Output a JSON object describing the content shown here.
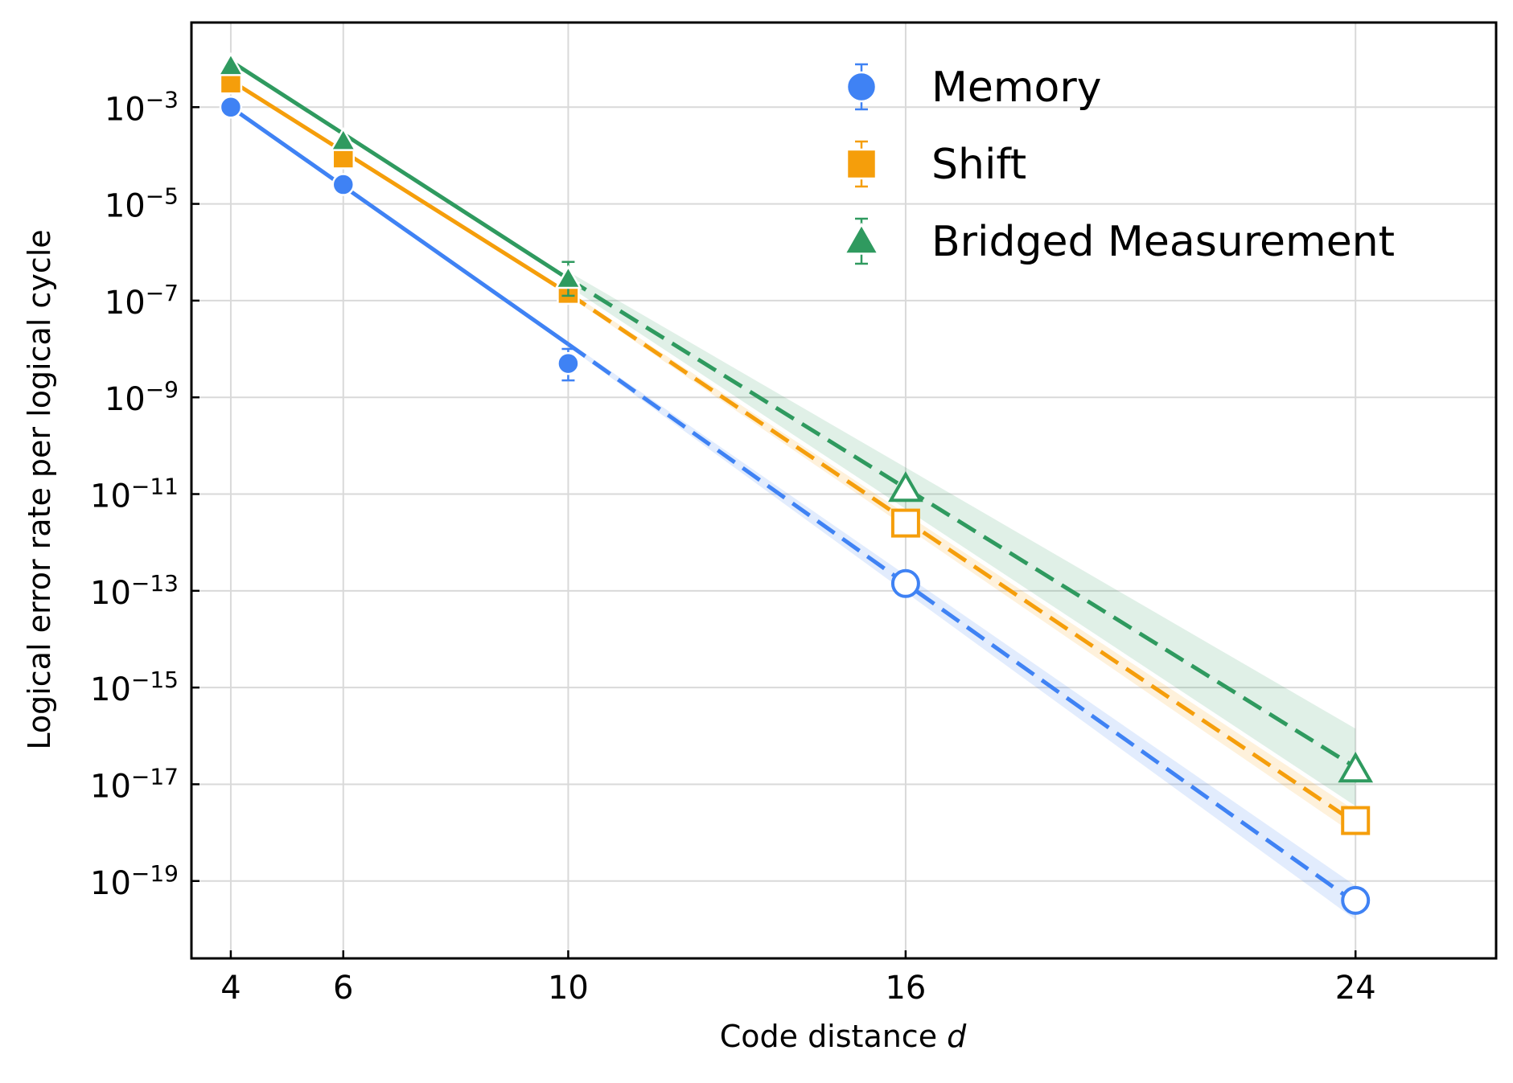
{
  "chart_data": {
    "type": "line",
    "xlabel_prefix": "Code distance ",
    "xlabel_var": "d",
    "ylabel": "Logical error rate per logical cycle",
    "yscale": "log",
    "xlim": [
      3.3,
      26.5
    ],
    "ylim_exp": [
      -20.6,
      -1.25
    ],
    "xticks": [
      4,
      6,
      10,
      16,
      24
    ],
    "yticks_exp": [
      -3,
      -5,
      -7,
      -9,
      -11,
      -13,
      -15,
      -17,
      -19
    ],
    "ytick_base": "10",
    "grid": true,
    "legend_position": "top-right",
    "series": [
      {
        "name": "Memory",
        "color": "#3f82f4",
        "marker": "circle",
        "measured": [
          {
            "x": 4,
            "log_y": -3.0
          },
          {
            "x": 6,
            "log_y": -4.6
          },
          {
            "x": 10,
            "log_y": -8.3,
            "err_low": -8.65,
            "err_high": -8.0
          }
        ],
        "projected": [
          {
            "x": 16,
            "log_y": -12.85
          },
          {
            "x": 24,
            "log_y": -19.4
          }
        ],
        "fit": {
          "x0": 4,
          "log_y0": -3.0,
          "x1": 10,
          "log_y1": -7.9
        },
        "extrapolation": {
          "x0": 10,
          "log_y0": -7.9,
          "x1": 24,
          "log_y1": -19.45
        },
        "band_half_width": [
          0.05,
          0.35
        ]
      },
      {
        "name": "Shift",
        "color": "#f59e0b",
        "marker": "square",
        "measured": [
          {
            "x": 4,
            "log_y": -2.5
          },
          {
            "x": 6,
            "log_y": -4.05
          },
          {
            "x": 10,
            "log_y": -6.85
          }
        ],
        "projected": [
          {
            "x": 16,
            "log_y": -11.6
          },
          {
            "x": 24,
            "log_y": -17.75
          }
        ],
        "fit": {
          "x0": 4,
          "log_y0": -2.45,
          "x1": 10,
          "log_y1": -6.85
        },
        "extrapolation": {
          "x0": 10,
          "log_y0": -6.85,
          "x1": 24,
          "log_y1": -17.8
        },
        "band_half_width": [
          0.05,
          0.25
        ]
      },
      {
        "name": "Bridged Measurement",
        "color": "#2f9a5f",
        "marker": "triangle",
        "measured": [
          {
            "x": 4,
            "log_y": -2.15
          },
          {
            "x": 6,
            "log_y": -3.7
          },
          {
            "x": 10,
            "log_y": -6.55,
            "err_low": -6.9,
            "err_high": -6.2
          }
        ],
        "projected": [
          {
            "x": 16,
            "log_y": -10.9
          },
          {
            "x": 24,
            "log_y": -16.7
          }
        ],
        "fit": {
          "x0": 4,
          "log_y0": -2.05,
          "x1": 10,
          "log_y1": -6.55
        },
        "extrapolation": {
          "x0": 10,
          "log_y0": -6.55,
          "x1": 24,
          "log_y1": -16.65
        },
        "band_half_width": [
          0.15,
          0.8
        ]
      }
    ]
  }
}
